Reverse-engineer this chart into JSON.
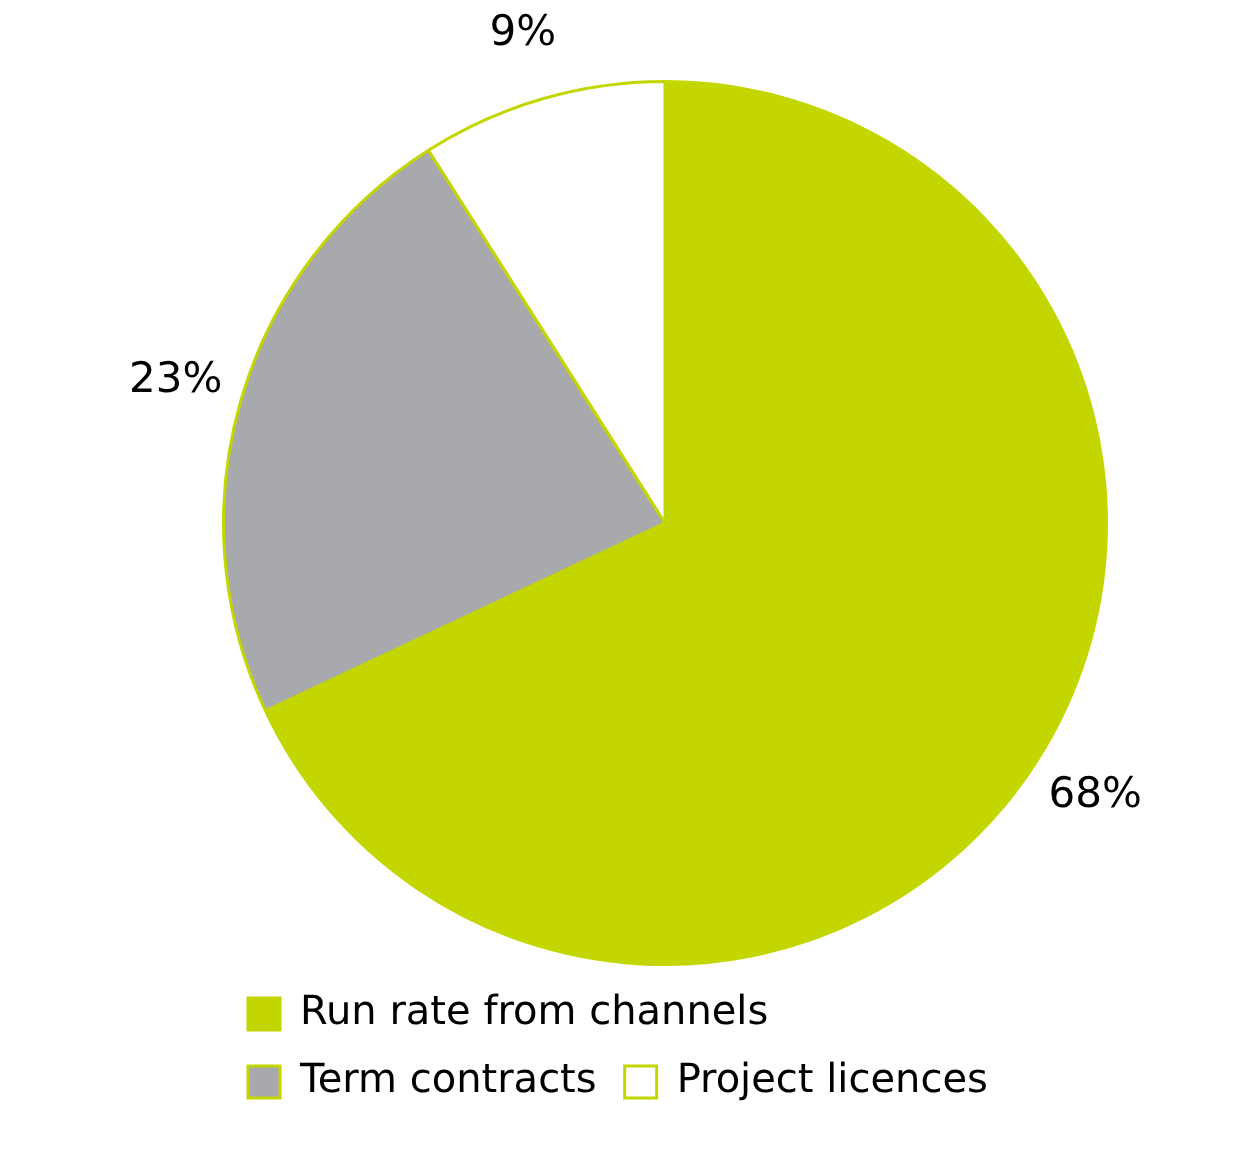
{
  "chart_data": {
    "type": "pie",
    "categories": [
      "Run rate from channels",
      "Term contracts",
      "Project licences"
    ],
    "values": [
      68,
      23,
      9
    ],
    "colors": [
      "#c4d600",
      "#a7a9ac",
      "#ffffff"
    ],
    "value_labels": [
      "68%",
      "23%",
      "9%"
    ],
    "legend": "bottom"
  }
}
